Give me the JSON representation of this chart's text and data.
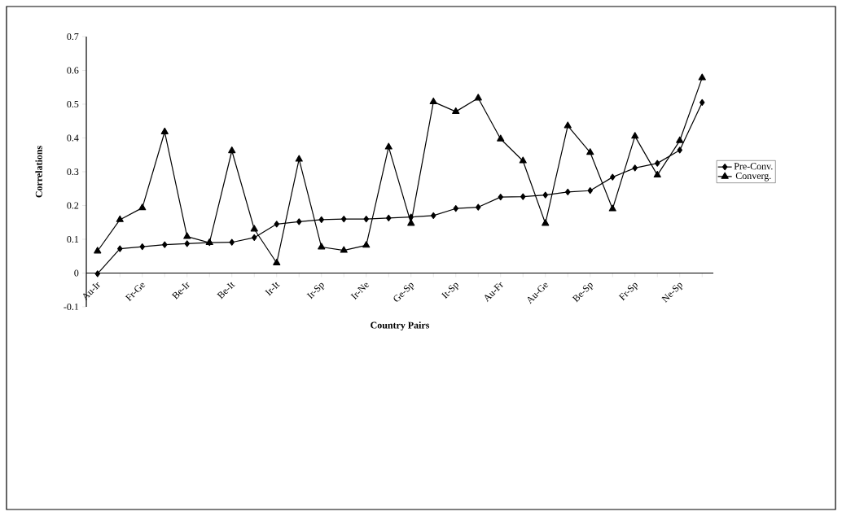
{
  "chart_data": {
    "type": "line",
    "xlabel": "Country Pairs",
    "ylabel": "Correlations",
    "categories": [
      "Au-Ir",
      null,
      "Fr-Ge",
      null,
      "Be-Ir",
      null,
      "Be-It",
      null,
      "Ir-It",
      null,
      "Ir-Sp",
      null,
      "Ir-Ne",
      null,
      "Ge-Sp",
      null,
      "It-Sp",
      null,
      "Au-Fr",
      null,
      "Au-Ge",
      null,
      "Be-Sp",
      null,
      "Fr-Sp",
      null,
      "Ne-Sp",
      null
    ],
    "series": [
      {
        "name": "Pre-Conv.",
        "color": "#000000",
        "marker": "diamond",
        "values": [
          -0.002,
          0.072,
          0.078,
          0.084,
          0.087,
          0.09,
          0.091,
          0.105,
          0.145,
          0.152,
          0.158,
          0.16,
          0.16,
          0.163,
          0.166,
          0.17,
          0.191,
          0.195,
          0.225,
          0.226,
          0.231,
          0.24,
          0.244,
          0.284,
          0.311,
          0.325,
          0.364,
          0.505
        ]
      },
      {
        "name": "Converg.",
        "color": "#000000",
        "marker": "triangle",
        "values": [
          0.065,
          0.158,
          0.193,
          0.418,
          0.108,
          0.09,
          0.362,
          0.13,
          0.03,
          0.337,
          0.077,
          0.067,
          0.082,
          0.373,
          0.147,
          0.507,
          0.478,
          0.518,
          0.397,
          0.332,
          0.147,
          0.436,
          0.357,
          0.19,
          0.405,
          0.29,
          0.392,
          0.578
        ]
      }
    ],
    "ylim": [
      -0.1,
      0.7
    ],
    "yticks": [
      -0.1,
      0,
      0.1,
      0.2,
      0.3,
      0.4,
      0.5,
      0.6,
      0.7
    ],
    "legend": "right",
    "grid": false,
    "line_style": "solid"
  }
}
